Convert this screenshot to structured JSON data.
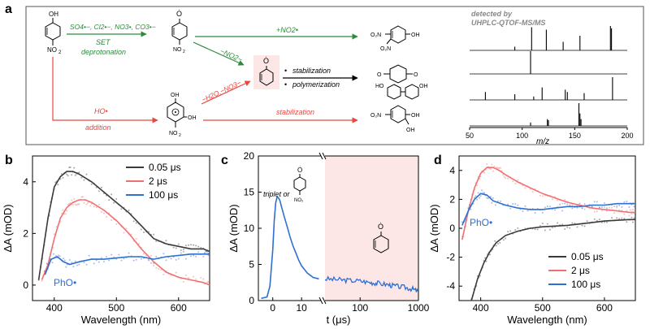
{
  "panels": {
    "a": {
      "label": "a",
      "reactant_top_sub": "OH",
      "reactant_bottom_sub": "NO",
      "subscript_2": "2",
      "radicals_text": "SO",
      "radicals_full": "SO4•−, Cl2•−, NO3•, CO3•−",
      "set_label": "SET",
      "deprotonation_label": "deprotonation",
      "ho_label": "HO•",
      "addition_label": "addition",
      "no2_add_label": "+NO2•",
      "minus_no2_label": "−NO2−",
      "minus_h2o_label": "−H2O,−NO3−",
      "stabilization_top": "stabilization",
      "polymerization": "polymerization",
      "stabilization_red": "stabilization",
      "detected_line1": "detected by",
      "detected_line2": "UHPLC-QTOF-MS/MS",
      "mass_xlabel": "m/z",
      "mass_ticks": [
        "50",
        "100",
        "150",
        "200"
      ],
      "bullet": "•",
      "colors": {
        "green": "#2e8b3c",
        "red": "#e8473f",
        "pink_box": "#fde6e6"
      }
    },
    "b": {
      "label": "b"
    },
    "c": {
      "label": "c",
      "triplet_label": "triplet or"
    },
    "d": {
      "label": "d"
    }
  },
  "chart_data": [
    {
      "panel": "a-ms",
      "type": "bar",
      "xlabel": "m/z",
      "xlim": [
        50,
        200
      ],
      "series": [
        {
          "name": "",
          "x": [
            93,
            109,
            123,
            139,
            155,
            184,
            185
          ],
          "values": [
            0.15,
            0.95,
            0.85,
            0.35,
            0.6,
            1.0,
            0.9
          ]
        },
        {
          "name": "",
          "x": [
            108
          ],
          "values": [
            1.0
          ]
        },
        {
          "name": "",
          "x": [
            65,
            93,
            111,
            119,
            141,
            143,
            159,
            186
          ],
          "values": [
            0.35,
            0.25,
            0.15,
            0.55,
            0.45,
            0.35,
            0.3,
            1.0
          ]
        },
        {
          "name": "",
          "x": [
            108,
            124,
            125,
            154,
            155,
            156
          ],
          "values": [
            0.15,
            0.3,
            0.25,
            1.0,
            0.55,
            0.3
          ]
        }
      ]
    },
    {
      "panel": "b",
      "type": "line",
      "xlabel": "Wavelength (nm)",
      "ylabel": "ΔA (mOD)",
      "xlim": [
        365,
        650
      ],
      "ylim": [
        -0.6,
        5
      ],
      "xticks": [
        400,
        500,
        600
      ],
      "yticks": [
        0,
        2,
        4
      ],
      "legend": "top-right",
      "series": [
        {
          "name": "0.05 μs",
          "color": "#3a3a3a",
          "x": [
            375,
            390,
            400,
            410,
            420,
            430,
            440,
            460,
            480,
            500,
            520,
            540,
            560,
            580,
            600,
            620,
            640,
            650
          ],
          "values": [
            0.2,
            2.6,
            3.8,
            4.2,
            4.4,
            4.4,
            4.3,
            4.0,
            3.6,
            3.2,
            2.8,
            2.3,
            1.8,
            1.6,
            1.5,
            1.4,
            1.4,
            1.3
          ]
        },
        {
          "name": "2 μs",
          "color": "#f07070",
          "x": [
            380,
            390,
            400,
            410,
            420,
            430,
            440,
            450,
            460,
            480,
            500,
            520,
            540,
            560,
            580,
            600,
            620,
            640,
            650
          ],
          "values": [
            0.2,
            0.8,
            1.8,
            2.6,
            3.0,
            3.2,
            3.3,
            3.3,
            3.2,
            2.9,
            2.5,
            2.0,
            1.4,
            0.9,
            0.5,
            0.3,
            0.2,
            0.1,
            0.0
          ]
        },
        {
          "name": "100 μs",
          "color": "#2f6fd0",
          "x": [
            385,
            395,
            405,
            415,
            425,
            440,
            460,
            480,
            500,
            520,
            540,
            560,
            580,
            600,
            620,
            640,
            650
          ],
          "values": [
            0.4,
            1.0,
            1.1,
            0.9,
            0.8,
            0.9,
            1.0,
            1.0,
            1.05,
            1.1,
            1.1,
            1.0,
            1.1,
            1.15,
            1.2,
            1.2,
            1.2
          ]
        }
      ],
      "annotation": "PhO•"
    },
    {
      "panel": "c",
      "type": "line",
      "xlabel": "t (μs)",
      "ylabel": "ΔA (mOD)",
      "ylim": [
        0,
        20
      ],
      "yticks": [
        0,
        5,
        10,
        15,
        20
      ],
      "xticks_linear": [
        "0",
        "10"
      ],
      "xticks_log": [
        "100",
        "1000"
      ],
      "series": [
        {
          "name": "",
          "color": "#2f6fd0",
          "x": [
            -4,
            -2,
            -1,
            0,
            0.5,
            1,
            1.5,
            2,
            2.5,
            3,
            4,
            5,
            6,
            7,
            8,
            9,
            10,
            12,
            14,
            16
          ],
          "values": [
            0.3,
            0.5,
            2,
            7,
            11,
            13.5,
            14.3,
            14.2,
            13.8,
            13.0,
            11.6,
            10.2,
            8.8,
            7.6,
            6.6,
            5.6,
            4.8,
            3.8,
            3.2,
            3.0
          ]
        },
        {
          "name": "",
          "color": "#2f6fd0",
          "x": [
            25,
            40,
            60,
            100,
            150,
            200,
            300,
            400,
            600,
            800,
            1000
          ],
          "values": [
            3.0,
            2.9,
            2.8,
            2.7,
            2.5,
            2.4,
            2.2,
            2.0,
            1.8,
            1.6,
            1.2
          ]
        }
      ]
    },
    {
      "panel": "d",
      "type": "line",
      "xlabel": "Wavelength (nm)",
      "ylabel": "ΔA (mOD)",
      "xlim": [
        365,
        650
      ],
      "ylim": [
        -5,
        5
      ],
      "xticks": [
        400,
        500,
        600
      ],
      "yticks": [
        -4,
        -2,
        0,
        2,
        4
      ],
      "legend": "bottom-right",
      "series": [
        {
          "name": "0.05 μs",
          "color": "#3a3a3a",
          "x": [
            385,
            395,
            405,
            415,
            425,
            440,
            460,
            480,
            500,
            520,
            540,
            560,
            580,
            600,
            620,
            640,
            650
          ],
          "values": [
            -5,
            -3.5,
            -2.4,
            -1.6,
            -1.0,
            -0.5,
            -0.2,
            0.0,
            0.1,
            0.15,
            0.2,
            0.3,
            0.4,
            0.5,
            0.55,
            0.6,
            0.6
          ]
        },
        {
          "name": "2 μs",
          "color": "#f07070",
          "x": [
            370,
            380,
            390,
            400,
            410,
            420,
            430,
            440,
            460,
            480,
            500,
            520,
            540,
            560,
            580,
            600,
            620,
            640,
            650
          ],
          "values": [
            -0.8,
            1.2,
            2.8,
            3.8,
            4.2,
            4.2,
            4.0,
            3.7,
            3.2,
            2.8,
            2.4,
            2.1,
            1.8,
            1.6,
            1.4,
            1.3,
            1.2,
            1.1,
            1.1
          ]
        },
        {
          "name": "100 μs",
          "color": "#2f6fd0",
          "x": [
            370,
            380,
            390,
            400,
            410,
            420,
            440,
            460,
            480,
            500,
            520,
            540,
            560,
            580,
            600,
            620,
            640,
            650
          ],
          "values": [
            0.2,
            1.2,
            2.0,
            2.4,
            2.3,
            1.9,
            1.6,
            1.4,
            1.3,
            1.3,
            1.4,
            1.5,
            1.5,
            1.6,
            1.6,
            1.7,
            1.7,
            1.7
          ]
        }
      ],
      "annotation": "PhO•"
    }
  ]
}
